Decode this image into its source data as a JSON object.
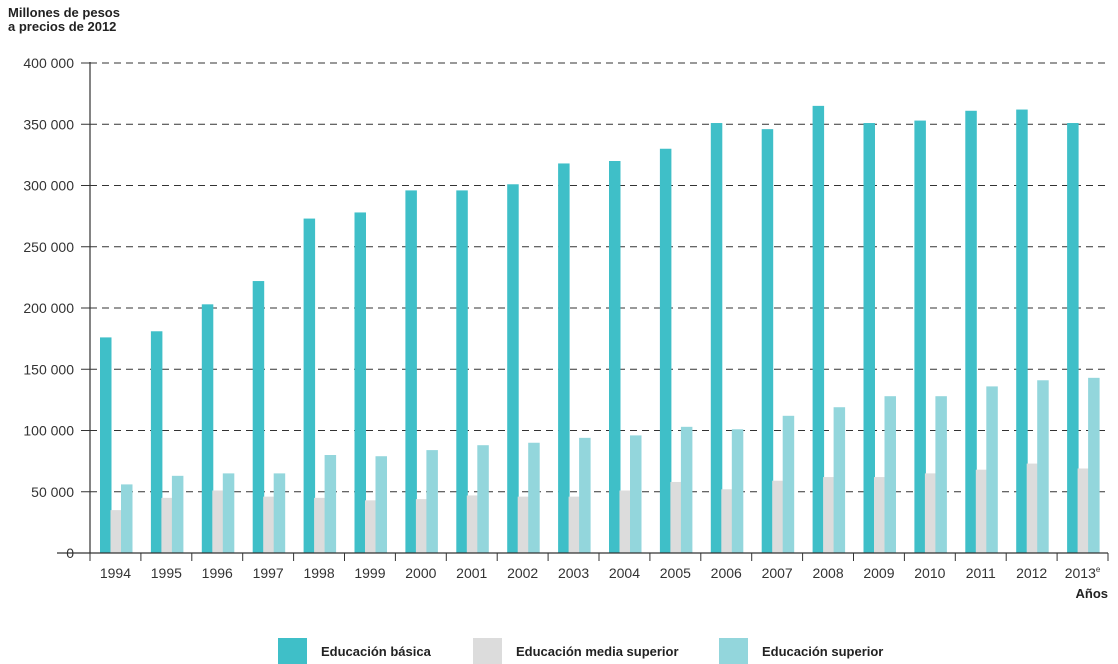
{
  "chart_data": {
    "type": "bar",
    "title": "",
    "ylabel_line1": "Millones de pesos",
    "ylabel_line2": "a precios de 2012",
    "xlabel": "Años",
    "ylim": [
      0,
      400000
    ],
    "yticks": [
      "0",
      "50 000",
      "100 000",
      "150 000",
      "200 000",
      "250 000",
      "300 000",
      "350 000",
      "400 000"
    ],
    "grid": "horizontal dashed",
    "legend_position": "bottom",
    "categories": [
      "1994",
      "1995",
      "1996",
      "1997",
      "1998",
      "1999",
      "2000",
      "2001",
      "2002",
      "2003",
      "2004",
      "2005",
      "2006",
      "2007",
      "2008",
      "2009",
      "2010",
      "2011",
      "2012",
      "2013"
    ],
    "last_category_superscript": "e",
    "series": [
      {
        "name": "Educación básica",
        "color": "#3fbfc8",
        "values": [
          176000,
          181000,
          203000,
          222000,
          273000,
          278000,
          296000,
          296000,
          301000,
          318000,
          320000,
          330000,
          351000,
          346000,
          365000,
          351000,
          353000,
          361000,
          362000,
          351000
        ]
      },
      {
        "name": "Educación media superior",
        "color": "#dcdcdc",
        "values": [
          35000,
          45000,
          51000,
          46000,
          45000,
          43000,
          44000,
          47000,
          46000,
          46000,
          51000,
          58000,
          52000,
          59000,
          62000,
          62000,
          65000,
          68000,
          73000,
          69000
        ]
      },
      {
        "name": "Educación superior",
        "color": "#93d6dc",
        "values": [
          56000,
          63000,
          65000,
          65000,
          80000,
          79000,
          84000,
          88000,
          90000,
          94000,
          96000,
          103000,
          101000,
          112000,
          119000,
          128000,
          128000,
          136000,
          141000,
          143000
        ]
      }
    ]
  }
}
